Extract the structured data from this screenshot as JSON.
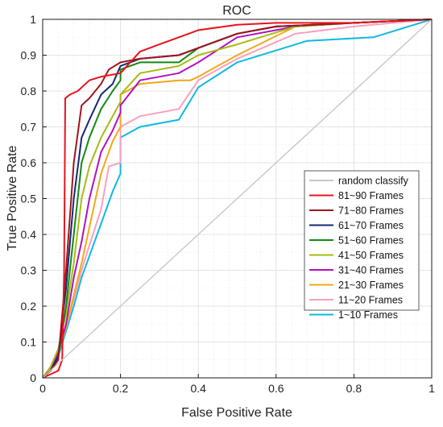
{
  "chart_data": {
    "type": "line",
    "title": "ROC",
    "xlabel": "False Positive Rate",
    "ylabel": "True Positive Rate",
    "xlim": [
      0,
      1
    ],
    "ylim": [
      0,
      1
    ],
    "x_ticks": [
      "0",
      "0.2",
      "0.4",
      "0.6",
      "0.8",
      "1"
    ],
    "y_ticks": [
      "0",
      "0.1",
      "0.2",
      "0.3",
      "0.4",
      "0.5",
      "0.6",
      "0.7",
      "0.8",
      "0.9",
      "1"
    ],
    "grid": true,
    "legend_position": "right",
    "series": [
      {
        "name": "random classify",
        "color": "#c8c8c8",
        "points": [
          [
            0,
            0
          ],
          [
            1,
            1
          ]
        ]
      },
      {
        "name": "81~90 Frames",
        "color": "#e8141c",
        "points": [
          [
            0,
            0
          ],
          [
            0.02,
            0.01
          ],
          [
            0.04,
            0.02
          ],
          [
            0.05,
            0.05
          ],
          [
            0.055,
            0.3
          ],
          [
            0.058,
            0.78
          ],
          [
            0.07,
            0.79
          ],
          [
            0.09,
            0.8
          ],
          [
            0.12,
            0.83
          ],
          [
            0.15,
            0.84
          ],
          [
            0.2,
            0.85
          ],
          [
            0.25,
            0.91
          ],
          [
            0.3,
            0.93
          ],
          [
            0.35,
            0.95
          ],
          [
            0.4,
            0.97
          ],
          [
            0.5,
            0.985
          ],
          [
            0.6,
            0.99
          ],
          [
            0.8,
            0.99
          ],
          [
            1,
            1
          ]
        ]
      },
      {
        "name": "71~80 Frames",
        "color": "#a0151e",
        "points": [
          [
            0,
            0
          ],
          [
            0.02,
            0.02
          ],
          [
            0.04,
            0.05
          ],
          [
            0.06,
            0.3
          ],
          [
            0.08,
            0.6
          ],
          [
            0.1,
            0.76
          ],
          [
            0.12,
            0.78
          ],
          [
            0.15,
            0.82
          ],
          [
            0.17,
            0.86
          ],
          [
            0.2,
            0.88
          ],
          [
            0.25,
            0.89
          ],
          [
            0.35,
            0.9
          ],
          [
            0.4,
            0.92
          ],
          [
            0.5,
            0.96
          ],
          [
            0.6,
            0.98
          ],
          [
            0.8,
            0.99
          ],
          [
            1,
            1
          ]
        ]
      },
      {
        "name": "61~70 Frames",
        "color": "#142878",
        "points": [
          [
            0,
            0
          ],
          [
            0.02,
            0.02
          ],
          [
            0.04,
            0.06
          ],
          [
            0.06,
            0.25
          ],
          [
            0.08,
            0.5
          ],
          [
            0.1,
            0.67
          ],
          [
            0.12,
            0.72
          ],
          [
            0.15,
            0.79
          ],
          [
            0.18,
            0.82
          ],
          [
            0.2,
            0.87
          ],
          [
            0.25,
            0.89
          ],
          [
            0.35,
            0.9
          ],
          [
            0.4,
            0.92
          ],
          [
            0.5,
            0.96
          ],
          [
            0.6,
            0.98
          ],
          [
            0.8,
            0.99
          ],
          [
            1,
            1
          ]
        ]
      },
      {
        "name": "51~60 Frames",
        "color": "#128a12",
        "points": [
          [
            0,
            0
          ],
          [
            0.02,
            0.02
          ],
          [
            0.04,
            0.06
          ],
          [
            0.06,
            0.2
          ],
          [
            0.08,
            0.4
          ],
          [
            0.1,
            0.6
          ],
          [
            0.12,
            0.67
          ],
          [
            0.15,
            0.75
          ],
          [
            0.18,
            0.8
          ],
          [
            0.2,
            0.83
          ],
          [
            0.2,
            0.86
          ],
          [
            0.25,
            0.88
          ],
          [
            0.35,
            0.88
          ],
          [
            0.4,
            0.92
          ],
          [
            0.5,
            0.96
          ],
          [
            0.6,
            0.98
          ],
          [
            0.8,
            0.99
          ],
          [
            1,
            1
          ]
        ]
      },
      {
        "name": "41~50 Frames",
        "color": "#a8bb10",
        "points": [
          [
            0,
            0
          ],
          [
            0.02,
            0.03
          ],
          [
            0.04,
            0.08
          ],
          [
            0.06,
            0.18
          ],
          [
            0.08,
            0.32
          ],
          [
            0.1,
            0.5
          ],
          [
            0.12,
            0.59
          ],
          [
            0.15,
            0.67
          ],
          [
            0.18,
            0.73
          ],
          [
            0.2,
            0.77
          ],
          [
            0.2,
            0.79
          ],
          [
            0.25,
            0.85
          ],
          [
            0.35,
            0.87
          ],
          [
            0.4,
            0.9
          ],
          [
            0.5,
            0.93
          ],
          [
            0.65,
            0.98
          ],
          [
            0.8,
            0.99
          ],
          [
            1,
            1
          ]
        ]
      },
      {
        "name": "31~40 Frames",
        "color": "#b012c0",
        "points": [
          [
            0,
            0
          ],
          [
            0.02,
            0.02
          ],
          [
            0.04,
            0.07
          ],
          [
            0.06,
            0.15
          ],
          [
            0.08,
            0.28
          ],
          [
            0.1,
            0.38
          ],
          [
            0.12,
            0.5
          ],
          [
            0.15,
            0.63
          ],
          [
            0.18,
            0.69
          ],
          [
            0.2,
            0.74
          ],
          [
            0.2,
            0.76
          ],
          [
            0.25,
            0.83
          ],
          [
            0.35,
            0.85
          ],
          [
            0.4,
            0.88
          ],
          [
            0.5,
            0.95
          ],
          [
            0.65,
            0.98
          ],
          [
            0.8,
            0.99
          ],
          [
            1,
            1
          ]
        ]
      },
      {
        "name": "21~30 Frames",
        "color": "#f0a818",
        "points": [
          [
            0,
            0
          ],
          [
            0.02,
            0.03
          ],
          [
            0.04,
            0.07
          ],
          [
            0.06,
            0.14
          ],
          [
            0.08,
            0.23
          ],
          [
            0.1,
            0.32
          ],
          [
            0.12,
            0.42
          ],
          [
            0.15,
            0.57
          ],
          [
            0.18,
            0.66
          ],
          [
            0.2,
            0.7
          ],
          [
            0.2,
            0.79
          ],
          [
            0.25,
            0.82
          ],
          [
            0.35,
            0.83
          ],
          [
            0.38,
            0.83
          ],
          [
            0.4,
            0.84
          ],
          [
            0.5,
            0.9
          ],
          [
            0.65,
            0.98
          ],
          [
            0.8,
            0.99
          ],
          [
            1,
            1
          ]
        ]
      },
      {
        "name": "11~20 Frames",
        "color": "#f8a0c0",
        "points": [
          [
            0,
            0
          ],
          [
            0.02,
            0.03
          ],
          [
            0.04,
            0.08
          ],
          [
            0.06,
            0.14
          ],
          [
            0.08,
            0.22
          ],
          [
            0.1,
            0.3
          ],
          [
            0.12,
            0.37
          ],
          [
            0.15,
            0.47
          ],
          [
            0.17,
            0.59
          ],
          [
            0.2,
            0.6
          ],
          [
            0.2,
            0.7
          ],
          [
            0.25,
            0.73
          ],
          [
            0.35,
            0.75
          ],
          [
            0.4,
            0.83
          ],
          [
            0.5,
            0.89
          ],
          [
            0.65,
            0.96
          ],
          [
            0.8,
            0.98
          ],
          [
            1,
            1
          ]
        ]
      },
      {
        "name": "1~10 Frames",
        "color": "#10b8e0",
        "points": [
          [
            0,
            0
          ],
          [
            0.02,
            0.02
          ],
          [
            0.04,
            0.06
          ],
          [
            0.06,
            0.13
          ],
          [
            0.08,
            0.2
          ],
          [
            0.1,
            0.28
          ],
          [
            0.12,
            0.34
          ],
          [
            0.15,
            0.43
          ],
          [
            0.18,
            0.52
          ],
          [
            0.2,
            0.57
          ],
          [
            0.2,
            0.67
          ],
          [
            0.25,
            0.7
          ],
          [
            0.35,
            0.72
          ],
          [
            0.4,
            0.81
          ],
          [
            0.5,
            0.88
          ],
          [
            0.68,
            0.94
          ],
          [
            0.85,
            0.95
          ],
          [
            1,
            1
          ]
        ]
      }
    ]
  }
}
